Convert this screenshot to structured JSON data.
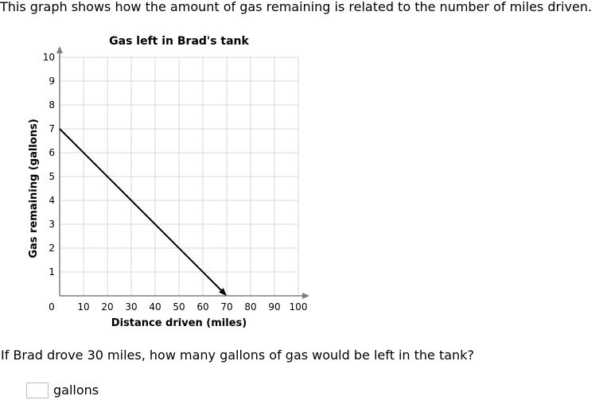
{
  "intro_text": "This graph shows how the amount of gas remaining is related to the number of miles driven.",
  "question_text": "If Brad drove 30 miles, how many gallons of gas would be left in the tank?",
  "answer": {
    "value": "",
    "unit": "gallons"
  },
  "colors": {
    "grid": "#d9d9d9",
    "axis": "#7f7f7f",
    "line": "#000000"
  },
  "chart_data": {
    "type": "line",
    "title": "Gas left in Brad's tank",
    "xlabel": "Distance driven (miles)",
    "ylabel": "Gas remaining (gallons)",
    "xlim": [
      0,
      100
    ],
    "ylim": [
      0,
      10
    ],
    "x_ticks": [
      0,
      10,
      20,
      30,
      40,
      50,
      60,
      70,
      80,
      90,
      100
    ],
    "y_ticks": [
      1,
      2,
      3,
      4,
      5,
      6,
      7,
      8,
      9,
      10
    ],
    "grid": true,
    "series": [
      {
        "x": [
          0,
          70
        ],
        "y": [
          7,
          0
        ]
      }
    ]
  }
}
